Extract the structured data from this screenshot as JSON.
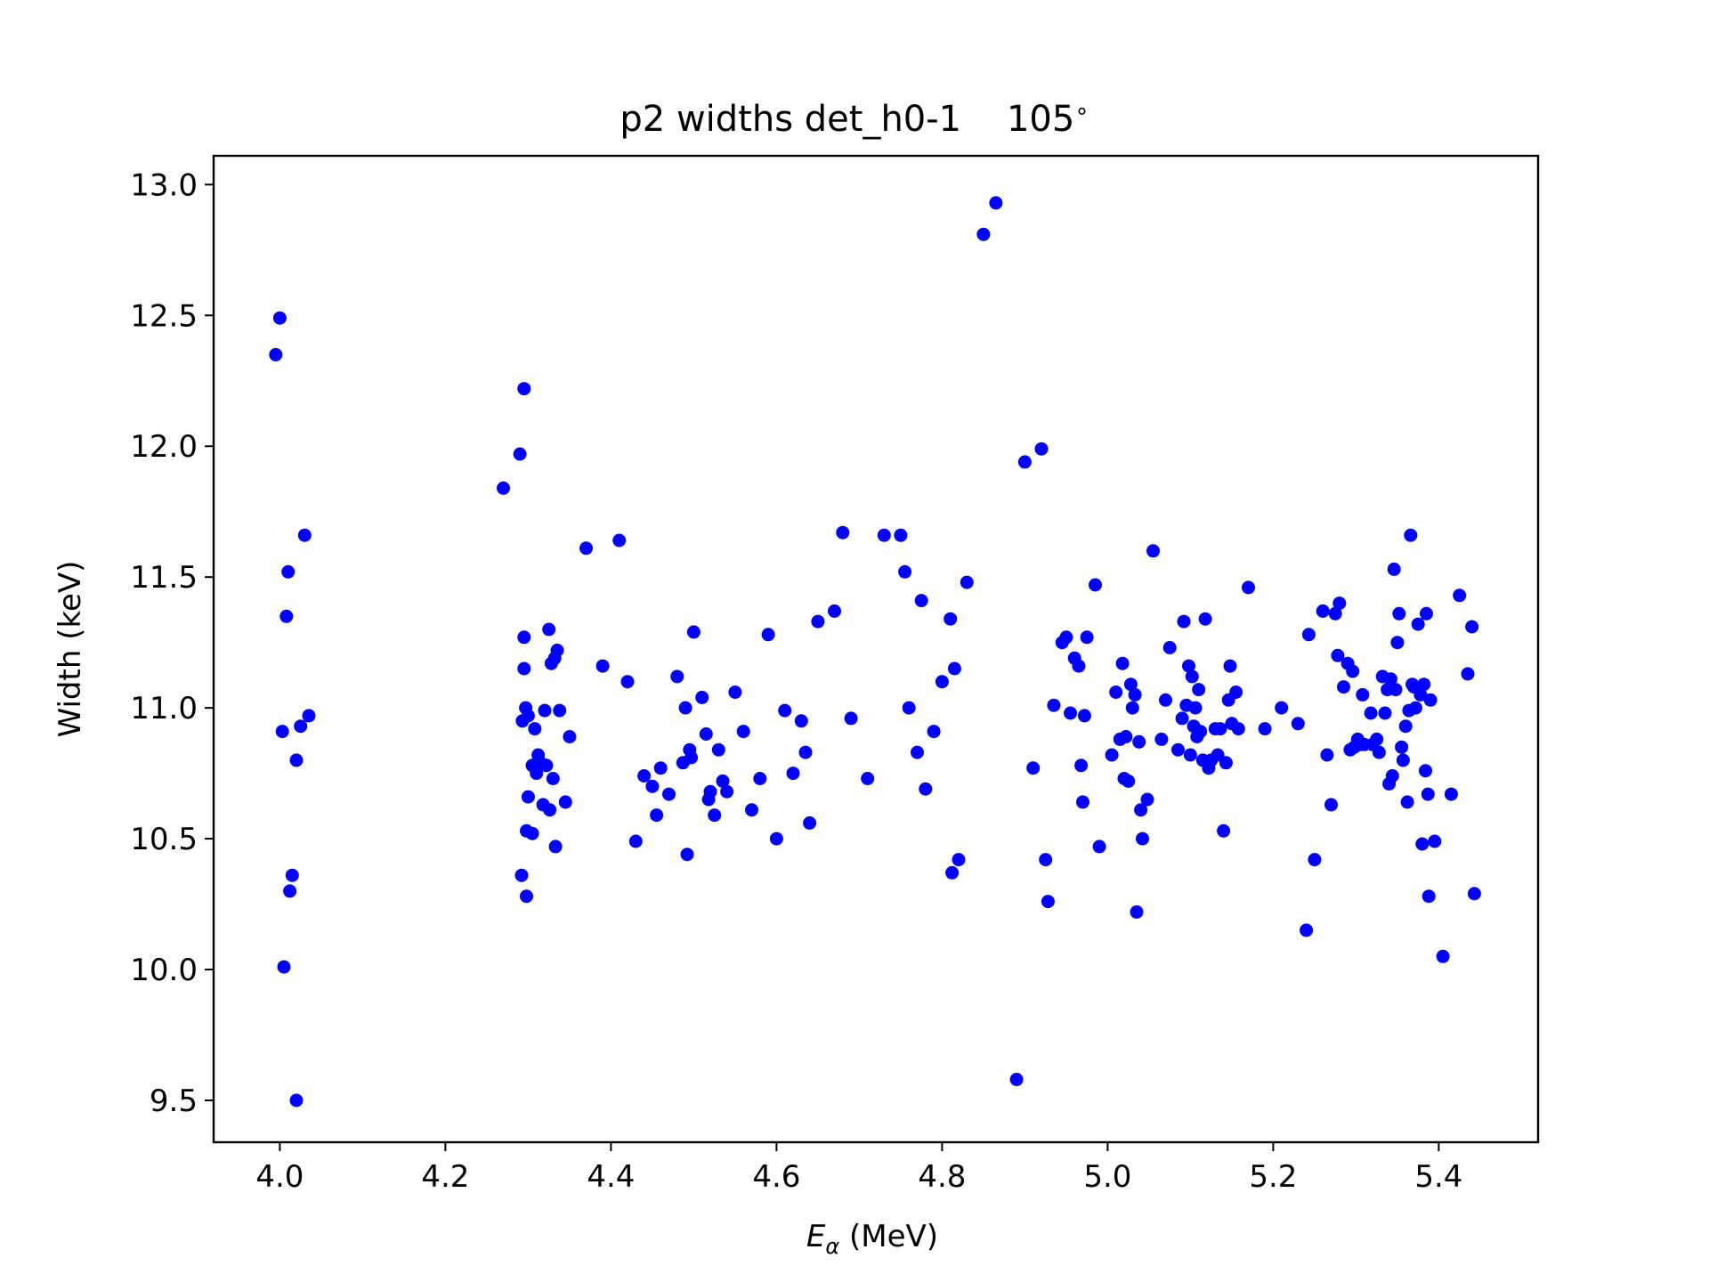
{
  "chart_data": {
    "type": "scatter",
    "title": "p2 widths det_h0-1    105",
    "title_degree_mark": "∘",
    "xlabel": {
      "symbol": "E",
      "subscript": "α",
      "unit": " (MeV)"
    },
    "ylabel": "Width (keV)",
    "xlim": [
      3.92,
      5.52
    ],
    "ylim": [
      9.34,
      13.11
    ],
    "xticks": [
      {
        "v": 4.0,
        "label": "4.0"
      },
      {
        "v": 4.2,
        "label": "4.2"
      },
      {
        "v": 4.4,
        "label": "4.4"
      },
      {
        "v": 4.6,
        "label": "4.6"
      },
      {
        "v": 4.8,
        "label": "4.8"
      },
      {
        "v": 5.0,
        "label": "5.0"
      },
      {
        "v": 5.2,
        "label": "5.2"
      },
      {
        "v": 5.4,
        "label": "5.4"
      }
    ],
    "yticks": [
      {
        "v": 9.5,
        "label": "9.5"
      },
      {
        "v": 10.0,
        "label": "10.0"
      },
      {
        "v": 10.5,
        "label": "10.5"
      },
      {
        "v": 11.0,
        "label": "11.0"
      },
      {
        "v": 11.5,
        "label": "11.5"
      },
      {
        "v": 12.0,
        "label": "12.0"
      },
      {
        "v": 12.5,
        "label": "12.5"
      },
      {
        "v": 13.0,
        "label": "13.0"
      }
    ],
    "grid": false,
    "marker_color": "#0000ff",
    "points": [
      [
        3.995,
        12.35
      ],
      [
        4.0,
        12.49
      ],
      [
        4.003,
        10.91
      ],
      [
        4.008,
        11.35
      ],
      [
        4.01,
        11.52
      ],
      [
        4.005,
        10.01
      ],
      [
        4.012,
        10.3
      ],
      [
        4.015,
        10.36
      ],
      [
        4.02,
        10.8
      ],
      [
        4.02,
        9.5
      ],
      [
        4.025,
        10.93
      ],
      [
        4.03,
        11.66
      ],
      [
        4.035,
        10.97
      ],
      [
        4.27,
        11.84
      ],
      [
        4.29,
        11.97
      ],
      [
        4.295,
        12.22
      ],
      [
        4.295,
        11.27
      ],
      [
        4.295,
        11.15
      ],
      [
        4.293,
        10.95
      ],
      [
        4.297,
        11.0
      ],
      [
        4.3,
        10.97
      ],
      [
        4.3,
        10.66
      ],
      [
        4.298,
        10.53
      ],
      [
        4.305,
        10.52
      ],
      [
        4.292,
        10.36
      ],
      [
        4.298,
        10.28
      ],
      [
        4.305,
        10.78
      ],
      [
        4.308,
        10.92
      ],
      [
        4.31,
        10.75
      ],
      [
        4.312,
        10.82
      ],
      [
        4.315,
        10.79
      ],
      [
        4.318,
        10.63
      ],
      [
        4.32,
        10.99
      ],
      [
        4.322,
        10.78
      ],
      [
        4.325,
        11.3
      ],
      [
        4.326,
        10.61
      ],
      [
        4.328,
        11.17
      ],
      [
        4.33,
        10.73
      ],
      [
        4.332,
        11.19
      ],
      [
        4.335,
        11.22
      ],
      [
        4.333,
        10.47
      ],
      [
        4.338,
        10.99
      ],
      [
        4.345,
        10.64
      ],
      [
        4.35,
        10.89
      ],
      [
        4.37,
        11.61
      ],
      [
        4.39,
        11.16
      ],
      [
        4.41,
        11.64
      ],
      [
        4.42,
        11.1
      ],
      [
        4.43,
        10.49
      ],
      [
        4.44,
        10.74
      ],
      [
        4.45,
        10.7
      ],
      [
        4.455,
        10.59
      ],
      [
        4.46,
        10.77
      ],
      [
        4.47,
        10.67
      ],
      [
        4.48,
        11.12
      ],
      [
        4.487,
        10.79
      ],
      [
        4.49,
        11.0
      ],
      [
        4.492,
        10.44
      ],
      [
        4.495,
        10.84
      ],
      [
        4.497,
        10.81
      ],
      [
        4.5,
        11.29
      ],
      [
        4.51,
        11.04
      ],
      [
        4.515,
        10.9
      ],
      [
        4.518,
        10.65
      ],
      [
        4.52,
        10.68
      ],
      [
        4.525,
        10.59
      ],
      [
        4.53,
        10.84
      ],
      [
        4.535,
        10.72
      ],
      [
        4.54,
        10.68
      ],
      [
        4.55,
        11.06
      ],
      [
        4.56,
        10.91
      ],
      [
        4.57,
        10.61
      ],
      [
        4.58,
        10.73
      ],
      [
        4.59,
        11.28
      ],
      [
        4.6,
        10.5
      ],
      [
        4.61,
        10.99
      ],
      [
        4.62,
        10.75
      ],
      [
        4.63,
        10.95
      ],
      [
        4.635,
        10.83
      ],
      [
        4.64,
        10.56
      ],
      [
        4.65,
        11.33
      ],
      [
        4.67,
        11.37
      ],
      [
        4.68,
        11.67
      ],
      [
        4.69,
        10.96
      ],
      [
        4.71,
        10.73
      ],
      [
        4.73,
        11.66
      ],
      [
        4.75,
        11.66
      ],
      [
        4.755,
        11.52
      ],
      [
        4.76,
        11.0
      ],
      [
        4.77,
        10.83
      ],
      [
        4.775,
        11.41
      ],
      [
        4.78,
        10.69
      ],
      [
        4.79,
        10.91
      ],
      [
        4.8,
        11.1
      ],
      [
        4.81,
        11.34
      ],
      [
        4.812,
        10.37
      ],
      [
        4.815,
        11.15
      ],
      [
        4.82,
        10.42
      ],
      [
        4.83,
        11.48
      ],
      [
        4.85,
        12.81
      ],
      [
        4.865,
        12.93
      ],
      [
        4.89,
        9.58
      ],
      [
        4.9,
        11.94
      ],
      [
        4.91,
        10.77
      ],
      [
        4.92,
        11.99
      ],
      [
        4.925,
        10.42
      ],
      [
        4.928,
        10.26
      ],
      [
        4.935,
        11.01
      ],
      [
        4.945,
        11.25
      ],
      [
        4.95,
        11.27
      ],
      [
        4.955,
        10.98
      ],
      [
        4.96,
        11.19
      ],
      [
        4.965,
        11.16
      ],
      [
        4.968,
        10.78
      ],
      [
        4.97,
        10.64
      ],
      [
        4.972,
        10.97
      ],
      [
        4.975,
        11.27
      ],
      [
        4.985,
        11.47
      ],
      [
        4.99,
        10.47
      ],
      [
        5.005,
        10.82
      ],
      [
        5.01,
        11.06
      ],
      [
        5.015,
        10.88
      ],
      [
        5.018,
        11.17
      ],
      [
        5.02,
        10.73
      ],
      [
        5.022,
        10.89
      ],
      [
        5.025,
        10.72
      ],
      [
        5.028,
        11.09
      ],
      [
        5.03,
        11.0
      ],
      [
        5.033,
        11.05
      ],
      [
        5.035,
        10.22
      ],
      [
        5.038,
        10.87
      ],
      [
        5.04,
        10.61
      ],
      [
        5.042,
        10.5
      ],
      [
        5.048,
        10.65
      ],
      [
        5.055,
        11.6
      ],
      [
        5.065,
        10.88
      ],
      [
        5.07,
        11.03
      ],
      [
        5.075,
        11.23
      ],
      [
        5.085,
        10.84
      ],
      [
        5.09,
        10.96
      ],
      [
        5.092,
        11.33
      ],
      [
        5.095,
        11.01
      ],
      [
        5.098,
        11.16
      ],
      [
        5.1,
        10.82
      ],
      [
        5.102,
        11.12
      ],
      [
        5.104,
        10.93
      ],
      [
        5.106,
        11.0
      ],
      [
        5.108,
        10.89
      ],
      [
        5.11,
        11.07
      ],
      [
        5.112,
        10.91
      ],
      [
        5.115,
        10.8
      ],
      [
        5.118,
        11.34
      ],
      [
        5.122,
        10.77
      ],
      [
        5.125,
        10.8
      ],
      [
        5.13,
        10.92
      ],
      [
        5.133,
        10.82
      ],
      [
        5.136,
        10.92
      ],
      [
        5.14,
        10.53
      ],
      [
        5.143,
        10.79
      ],
      [
        5.146,
        11.03
      ],
      [
        5.148,
        11.16
      ],
      [
        5.15,
        10.94
      ],
      [
        5.155,
        11.06
      ],
      [
        5.158,
        10.92
      ],
      [
        5.17,
        11.46
      ],
      [
        5.19,
        10.92
      ],
      [
        5.21,
        11.0
      ],
      [
        5.23,
        10.94
      ],
      [
        5.24,
        10.15
      ],
      [
        5.243,
        11.28
      ],
      [
        5.25,
        10.42
      ],
      [
        5.26,
        11.37
      ],
      [
        5.265,
        10.82
      ],
      [
        5.27,
        10.63
      ],
      [
        5.275,
        11.36
      ],
      [
        5.278,
        11.2
      ],
      [
        5.28,
        11.4
      ],
      [
        5.285,
        11.08
      ],
      [
        5.29,
        11.17
      ],
      [
        5.293,
        10.84
      ],
      [
        5.296,
        11.14
      ],
      [
        5.298,
        10.85
      ],
      [
        5.302,
        10.88
      ],
      [
        5.305,
        10.86
      ],
      [
        5.308,
        11.05
      ],
      [
        5.31,
        10.86
      ],
      [
        5.318,
        10.98
      ],
      [
        5.32,
        10.86
      ],
      [
        5.325,
        10.88
      ],
      [
        5.328,
        10.83
      ],
      [
        5.332,
        11.12
      ],
      [
        5.335,
        10.98
      ],
      [
        5.338,
        11.07
      ],
      [
        5.34,
        10.71
      ],
      [
        5.342,
        11.11
      ],
      [
        5.344,
        10.74
      ],
      [
        5.346,
        11.53
      ],
      [
        5.348,
        11.07
      ],
      [
        5.35,
        11.25
      ],
      [
        5.352,
        11.36
      ],
      [
        5.355,
        10.85
      ],
      [
        5.357,
        10.8
      ],
      [
        5.36,
        10.93
      ],
      [
        5.362,
        10.64
      ],
      [
        5.364,
        10.99
      ],
      [
        5.366,
        11.66
      ],
      [
        5.368,
        11.09
      ],
      [
        5.37,
        11.08
      ],
      [
        5.372,
        11.0
      ],
      [
        5.375,
        11.32
      ],
      [
        5.378,
        11.05
      ],
      [
        5.38,
        10.48
      ],
      [
        5.382,
        11.09
      ],
      [
        5.384,
        10.76
      ],
      [
        5.385,
        11.36
      ],
      [
        5.387,
        10.67
      ],
      [
        5.388,
        10.28
      ],
      [
        5.39,
        11.03
      ],
      [
        5.395,
        10.49
      ],
      [
        5.405,
        10.05
      ],
      [
        5.415,
        10.67
      ],
      [
        5.425,
        11.43
      ],
      [
        5.435,
        11.13
      ],
      [
        5.44,
        11.31
      ],
      [
        5.443,
        10.29
      ]
    ]
  }
}
